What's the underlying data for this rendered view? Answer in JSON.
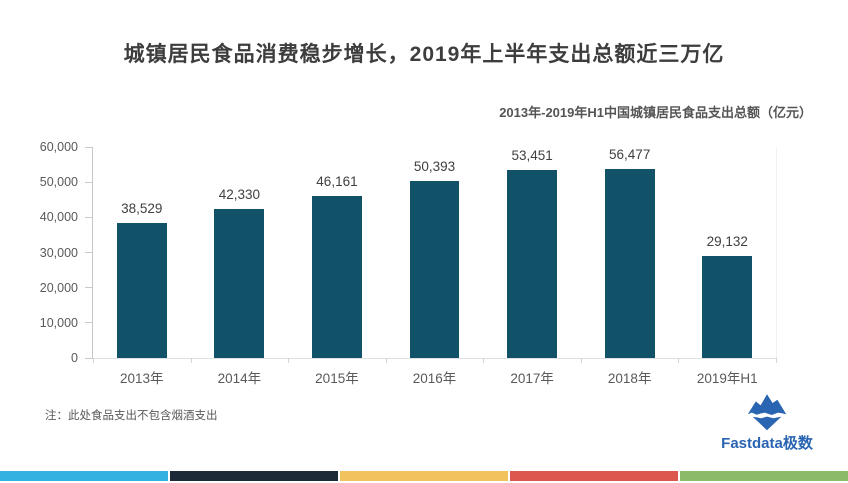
{
  "header": {
    "title": "城镇居民食品消费稳步增长，2019年上半年支出总额近三万亿"
  },
  "chart_data": {
    "type": "bar",
    "title": "2013年-2019年H1中国城镇居民食品支出总额（亿元）",
    "categories": [
      "2013年",
      "2014年",
      "2015年",
      "2016年",
      "2017年",
      "2018年",
      "2019年H1"
    ],
    "values": [
      38529,
      42330,
      46161,
      50393,
      53451,
      56477,
      29132
    ],
    "value_labels": [
      "38,529",
      "42,330",
      "46,161",
      "50,393",
      "53,451",
      "56,477",
      "29,132"
    ],
    "xlabel": "",
    "ylabel": "",
    "ylim": [
      0,
      60000
    ],
    "ytick_step": 10000,
    "ytick_labels": [
      "0",
      "10,000",
      "20,000",
      "30,000",
      "40,000",
      "50,000",
      "60,000"
    ],
    "grid": "off",
    "legend": "none",
    "bar_color": "#125269"
  },
  "footnote": {
    "text": "注：此处食品支出不包含烟酒支出"
  },
  "logo": {
    "text": "Fastdata极数",
    "icon": "iceberg-icon",
    "color": "#2a65b2"
  },
  "footer": {
    "strip_colors": [
      "#35B1E1",
      "#1C2A38",
      "#F0C35E",
      "#DD574E",
      "#8BBA68"
    ]
  }
}
